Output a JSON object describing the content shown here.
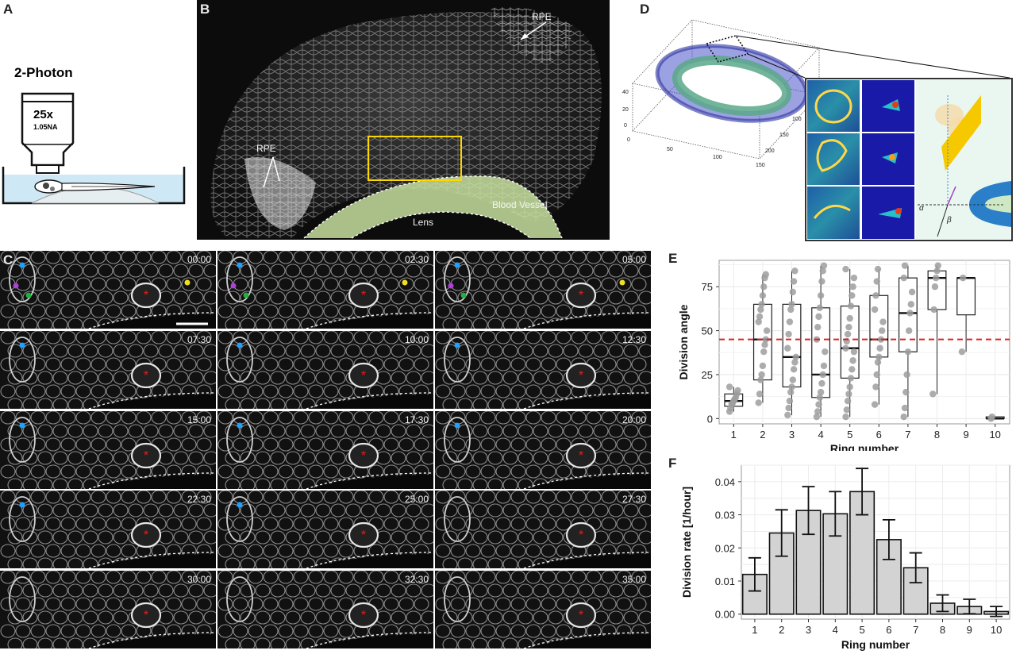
{
  "panels": {
    "A": "A",
    "B": "B",
    "C": "C",
    "D": "D",
    "E": "E",
    "F": "F"
  },
  "panelA": {
    "method": "2-Photon",
    "magnification": "25x",
    "na": "1.05NA"
  },
  "panelB": {
    "rpe_top": "RPE",
    "rpe_left": "RPE",
    "lens": "Lens",
    "vessel": "Blood Vessel"
  },
  "panelC": {
    "timestamps": [
      "00:00",
      "02:30",
      "05:00",
      "07:30",
      "10:00",
      "12:30",
      "15:00",
      "17:30",
      "20:00",
      "22:30",
      "25:00",
      "27:30",
      "30:00",
      "32:30",
      "35:00"
    ]
  },
  "panelD": {
    "z_ticks": [
      "40",
      "20",
      "0"
    ],
    "x_ticks": [
      "0",
      "50",
      "100",
      "150"
    ],
    "y_ticks": [
      "100",
      "150",
      "200"
    ],
    "alpha": "α",
    "beta": "β"
  },
  "colors": {
    "gray_fill": "#d3d3d3",
    "median_line": "#e02020",
    "vessel": "#c8e0a0",
    "yellow_box": "#ffd700"
  },
  "chart_data": [
    {
      "type": "box",
      "panel": "E",
      "ylabel": "Division angle",
      "xlabel": "Ring number",
      "categories": [
        "1",
        "2",
        "3",
        "4",
        "5",
        "6",
        "7",
        "8",
        "9",
        "10"
      ],
      "ylim": [
        -3,
        90
      ],
      "yticks": [
        0,
        25,
        50,
        75
      ],
      "reference_line": 45,
      "boxes": [
        {
          "q1": 7,
          "median": 10,
          "q3": 14,
          "wmin": 4,
          "wmax": 18
        },
        {
          "q1": 22,
          "median": 45,
          "q3": 65,
          "wmin": 9,
          "wmax": 82
        },
        {
          "q1": 18,
          "median": 35,
          "q3": 65,
          "wmin": 2,
          "wmax": 84
        },
        {
          "q1": 12,
          "median": 25,
          "q3": 63,
          "wmin": 1,
          "wmax": 87
        },
        {
          "q1": 23,
          "median": 40,
          "q3": 64,
          "wmin": 1,
          "wmax": 85
        },
        {
          "q1": 35,
          "median": 45,
          "q3": 70,
          "wmin": 8,
          "wmax": 85
        },
        {
          "q1": 38,
          "median": 60,
          "q3": 80,
          "wmin": 1,
          "wmax": 87
        },
        {
          "q1": 62,
          "median": 80,
          "q3": 84,
          "wmin": 14,
          "wmax": 87
        },
        {
          "q1": 59,
          "median": 80,
          "q3": 80,
          "wmin": 38,
          "wmax": 80
        },
        {
          "q1": 0,
          "median": 0,
          "q3": 1,
          "wmin": 0,
          "wmax": 1
        }
      ],
      "points": [
        [
          4,
          6,
          8,
          9,
          10,
          11,
          12,
          14,
          16,
          18
        ],
        [
          9,
          14,
          22,
          25,
          30,
          38,
          42,
          45,
          50,
          55,
          58,
          62,
          65,
          70,
          75,
          80,
          82
        ],
        [
          2,
          6,
          10,
          15,
          18,
          22,
          28,
          32,
          35,
          40,
          48,
          55,
          62,
          65,
          72,
          78,
          84
        ],
        [
          1,
          4,
          8,
          12,
          15,
          20,
          25,
          30,
          38,
          45,
          52,
          58,
          63,
          70,
          78,
          84,
          87
        ],
        [
          1,
          5,
          10,
          14,
          18,
          23,
          28,
          33,
          38,
          40,
          44,
          48,
          52,
          57,
          64,
          70,
          75,
          80,
          85
        ],
        [
          8,
          18,
          25,
          32,
          35,
          40,
          45,
          50,
          55,
          62,
          70,
          78,
          85
        ],
        [
          1,
          6,
          15,
          25,
          38,
          50,
          60,
          65,
          72,
          80,
          87
        ],
        [
          14,
          62,
          75,
          80,
          84,
          87
        ],
        [
          38,
          80
        ],
        [
          0,
          1
        ]
      ]
    },
    {
      "type": "bar",
      "panel": "F",
      "ylabel": "Division rate  [1/hour]",
      "xlabel": "Ring number",
      "categories": [
        "1",
        "2",
        "3",
        "4",
        "5",
        "6",
        "7",
        "8",
        "9",
        "10"
      ],
      "values": [
        0.012,
        0.0245,
        0.0313,
        0.0303,
        0.037,
        0.0225,
        0.014,
        0.0033,
        0.0023,
        0.0008
      ],
      "errors": [
        0.005,
        0.007,
        0.0072,
        0.0067,
        0.007,
        0.006,
        0.0045,
        0.0025,
        0.0022,
        0.0015
      ],
      "ylim": [
        -0.0015,
        0.045
      ],
      "yticks": [
        0.0,
        0.01,
        0.02,
        0.03,
        0.04
      ],
      "ytick_labels": [
        "0.00",
        "0.01",
        "0.02",
        "0.03",
        "0.04"
      ]
    }
  ]
}
